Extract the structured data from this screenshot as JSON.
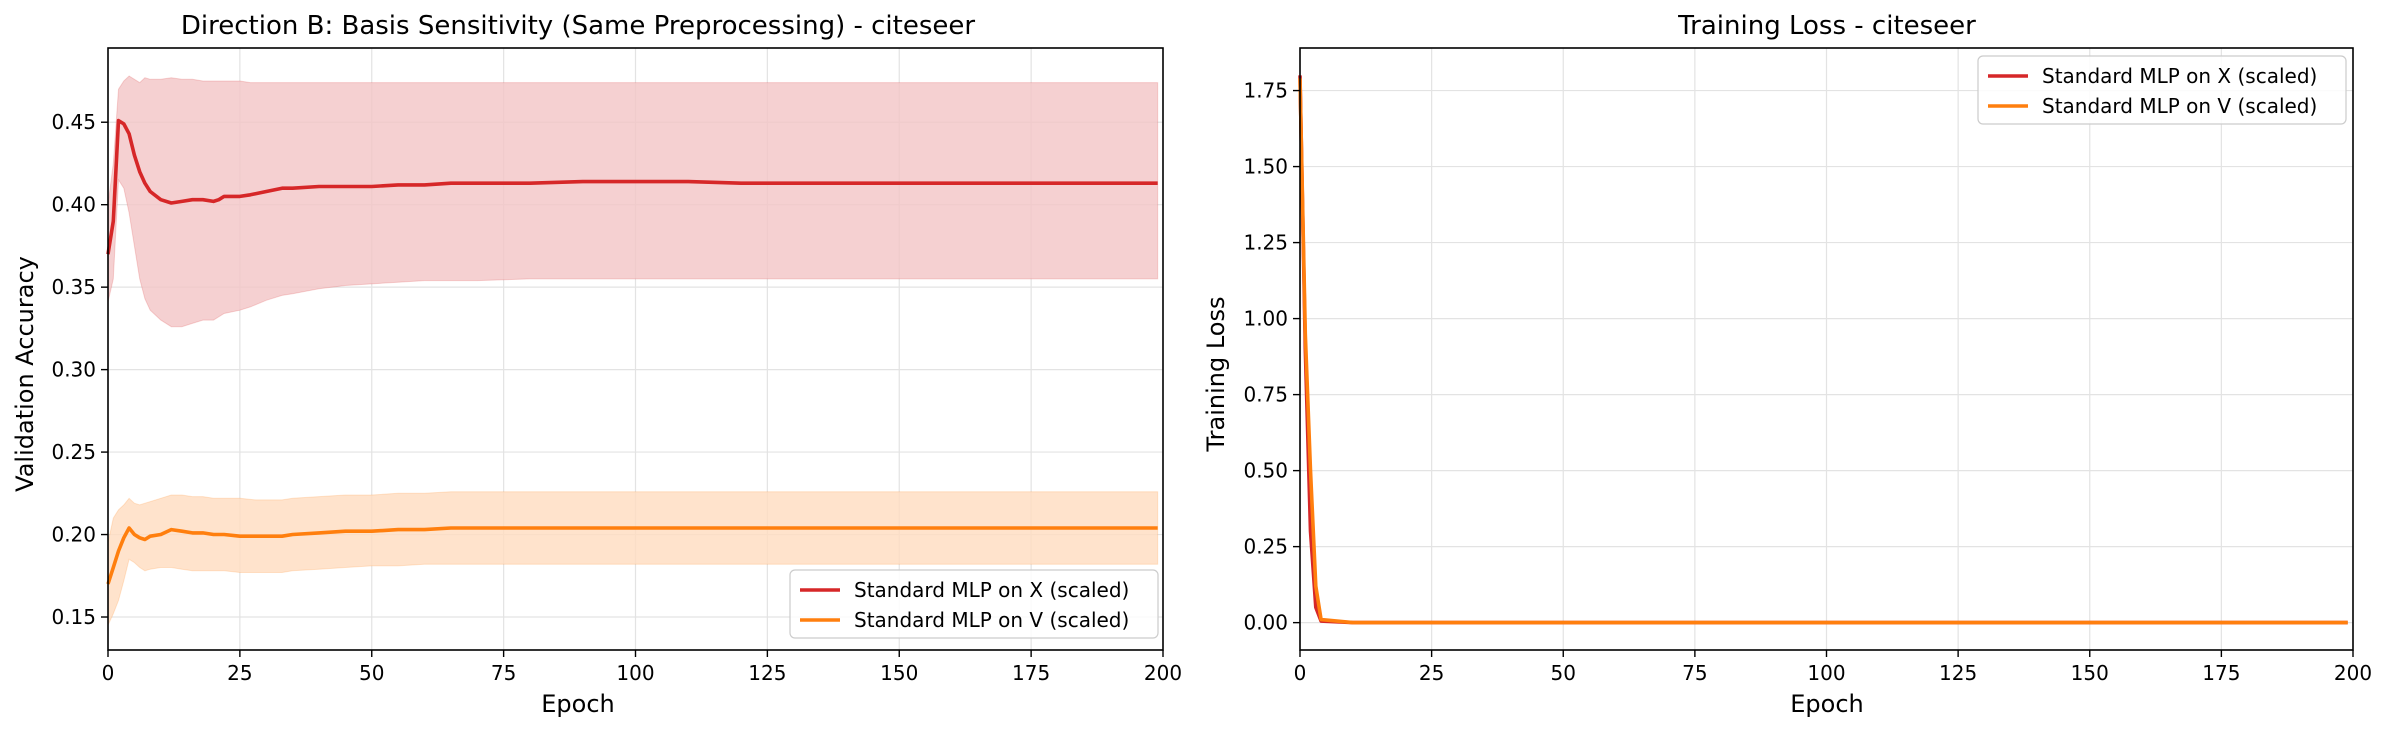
{
  "chart_data": [
    {
      "type": "line",
      "title": "Direction B: Basis Sensitivity (Same Preprocessing) - citeseer",
      "xlabel": "Epoch",
      "ylabel": "Validation Accuracy",
      "xlim": [
        0,
        200
      ],
      "ylim": [
        0.13,
        0.495
      ],
      "xticks": [
        0,
        25,
        50,
        75,
        100,
        125,
        150,
        175,
        200
      ],
      "yticks": [
        0.15,
        0.2,
        0.25,
        0.3,
        0.35,
        0.4,
        0.45
      ],
      "grid": true,
      "legend_position": "lower-right",
      "colors": {
        "X": "#d62728",
        "V": "#ff7f0e",
        "X_band": "#f2c4c6",
        "V_band": "#ffdcbf"
      },
      "series": [
        {
          "name": "Standard MLP on X (scaled)",
          "color": "#d62728",
          "x": [
            0,
            1,
            2,
            3,
            4,
            5,
            6,
            7,
            8,
            10,
            12,
            14,
            16,
            18,
            20,
            21,
            22,
            25,
            27,
            30,
            33,
            35,
            40,
            45,
            50,
            55,
            60,
            65,
            70,
            80,
            90,
            100,
            110,
            120,
            150,
            180,
            199
          ],
          "values": [
            0.37,
            0.39,
            0.451,
            0.449,
            0.443,
            0.43,
            0.42,
            0.413,
            0.408,
            0.403,
            0.401,
            0.402,
            0.403,
            0.403,
            0.402,
            0.403,
            0.405,
            0.405,
            0.406,
            0.408,
            0.41,
            0.41,
            0.411,
            0.411,
            0.411,
            0.412,
            0.412,
            0.413,
            0.413,
            0.413,
            0.414,
            0.414,
            0.414,
            0.413,
            0.413,
            0.413,
            0.413
          ],
          "lower": [
            0.341,
            0.355,
            0.415,
            0.41,
            0.395,
            0.375,
            0.355,
            0.343,
            0.336,
            0.33,
            0.326,
            0.326,
            0.328,
            0.33,
            0.33,
            0.332,
            0.334,
            0.336,
            0.338,
            0.342,
            0.345,
            0.346,
            0.349,
            0.351,
            0.352,
            0.353,
            0.354,
            0.354,
            0.354,
            0.355,
            0.355,
            0.355,
            0.355,
            0.355,
            0.355,
            0.355,
            0.355
          ],
          "upper": [
            0.4,
            0.425,
            0.47,
            0.475,
            0.478,
            0.476,
            0.474,
            0.477,
            0.476,
            0.476,
            0.477,
            0.476,
            0.476,
            0.475,
            0.475,
            0.475,
            0.475,
            0.475,
            0.474,
            0.474,
            0.474,
            0.474,
            0.474,
            0.474,
            0.474,
            0.474,
            0.474,
            0.474,
            0.474,
            0.474,
            0.474,
            0.474,
            0.474,
            0.474,
            0.474,
            0.474,
            0.474
          ]
        },
        {
          "name": "Standard MLP on V (scaled)",
          "color": "#ff7f0e",
          "x": [
            0,
            1,
            2,
            3,
            4,
            5,
            6,
            7,
            8,
            10,
            12,
            14,
            16,
            18,
            20,
            22,
            25,
            28,
            30,
            33,
            35,
            40,
            45,
            50,
            55,
            60,
            65,
            70,
            80,
            100,
            130,
            160,
            199
          ],
          "values": [
            0.17,
            0.18,
            0.19,
            0.198,
            0.204,
            0.2,
            0.198,
            0.197,
            0.199,
            0.2,
            0.203,
            0.202,
            0.201,
            0.201,
            0.2,
            0.2,
            0.199,
            0.199,
            0.199,
            0.199,
            0.2,
            0.201,
            0.202,
            0.202,
            0.203,
            0.203,
            0.204,
            0.204,
            0.204,
            0.204,
            0.204,
            0.204,
            0.204
          ],
          "lower": [
            0.145,
            0.152,
            0.16,
            0.172,
            0.185,
            0.183,
            0.18,
            0.178,
            0.179,
            0.18,
            0.18,
            0.179,
            0.178,
            0.178,
            0.178,
            0.178,
            0.177,
            0.177,
            0.177,
            0.177,
            0.178,
            0.179,
            0.18,
            0.181,
            0.181,
            0.182,
            0.182,
            0.182,
            0.182,
            0.182,
            0.182,
            0.182,
            0.182
          ],
          "upper": [
            0.195,
            0.21,
            0.215,
            0.218,
            0.222,
            0.219,
            0.218,
            0.219,
            0.22,
            0.222,
            0.224,
            0.224,
            0.223,
            0.223,
            0.222,
            0.222,
            0.222,
            0.221,
            0.221,
            0.221,
            0.222,
            0.223,
            0.224,
            0.224,
            0.225,
            0.225,
            0.226,
            0.226,
            0.226,
            0.226,
            0.226,
            0.226,
            0.226
          ]
        }
      ]
    },
    {
      "type": "line",
      "title": "Training Loss - citeseer",
      "xlabel": "Epoch",
      "ylabel": "Training Loss",
      "xlim": [
        0,
        200
      ],
      "ylim": [
        -0.09,
        1.89
      ],
      "xticks": [
        0,
        25,
        50,
        75,
        100,
        125,
        150,
        175,
        200
      ],
      "yticks": [
        0.0,
        0.25,
        0.5,
        0.75,
        1.0,
        1.25,
        1.5,
        1.75
      ],
      "grid": true,
      "legend_position": "top-right",
      "series": [
        {
          "name": "Standard MLP on X (scaled)",
          "color": "#d62728",
          "x": [
            0,
            1,
            2,
            3,
            4,
            10,
            50,
            100,
            150,
            199
          ],
          "values": [
            1.8,
            0.9,
            0.3,
            0.05,
            0.005,
            0.0,
            0.0,
            0.0,
            0.0,
            0.0
          ]
        },
        {
          "name": "Standard MLP on V (scaled)",
          "color": "#ff7f0e",
          "x": [
            0,
            1,
            2,
            3,
            4,
            10,
            50,
            100,
            150,
            199
          ],
          "values": [
            1.79,
            0.95,
            0.5,
            0.12,
            0.01,
            0.0,
            0.0,
            0.0,
            0.0,
            0.0
          ]
        }
      ]
    }
  ]
}
